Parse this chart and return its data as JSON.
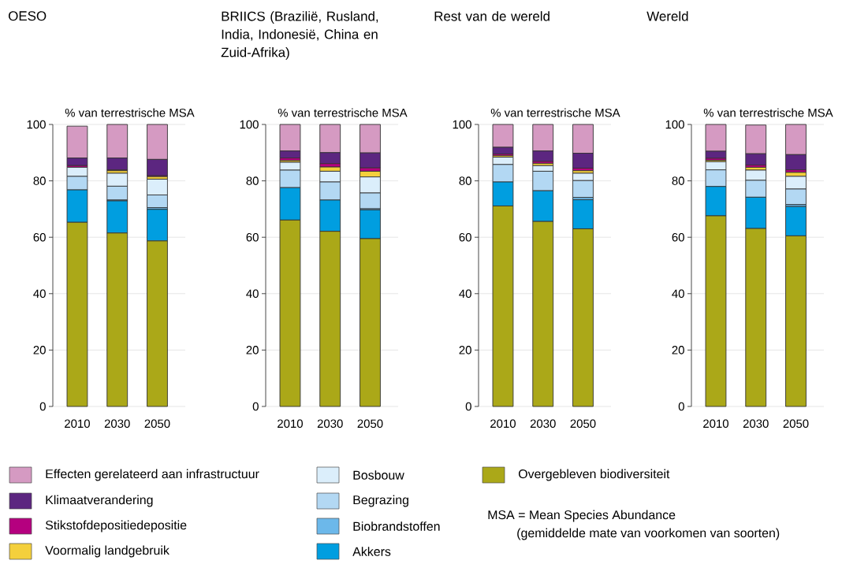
{
  "chart_data": [
    {
      "type": "bar",
      "stacked": true,
      "title": "OESO",
      "ylabel": "% van terrestrische MSA",
      "categories": [
        "2010",
        "2030",
        "2050"
      ],
      "ylim": [
        0,
        100
      ],
      "yticks": [
        0,
        20,
        40,
        60,
        80,
        100
      ],
      "grid": "y",
      "legend": "bottom",
      "annotations": [
        "MSA = Mean Species Abundance",
        "(gemiddelde mate van voorkomen van soorten)"
      ],
      "series": [
        {
          "name": "Overgebleven biodiversiteit",
          "color": "#aba818",
          "values": [
            65.3,
            61.5,
            58.7
          ]
        },
        {
          "name": "Akkers",
          "color": "#009ee0",
          "values": [
            11.5,
            11.4,
            11.2
          ]
        },
        {
          "name": "Biobrandstoffen",
          "color": "#6cb8ea",
          "values": [
            null,
            0.3,
            0.6
          ]
        },
        {
          "name": "Begrazing",
          "color": "#b3d8f3",
          "values": [
            4.8,
            4.9,
            4.5
          ]
        },
        {
          "name": "Bosbouw",
          "color": "#dbeefb",
          "values": [
            3.2,
            4.6,
            5.6
          ]
        },
        {
          "name": "Voormalig landgebruik",
          "color": "#f4d03c",
          "values": [
            null,
            0.9,
            0.9
          ]
        },
        {
          "name": "Stikstofdepositiedepositie",
          "color": "#b5007f",
          "values": [
            0.6,
            0.3,
            0.3
          ]
        },
        {
          "name": "Klimaatverandering",
          "color": "#5c2680",
          "values": [
            2.7,
            4.2,
            5.8
          ]
        },
        {
          "name": "Effecten gerelateerd aan infrastructuur",
          "color": "#d59ac2",
          "values": [
            11.3,
            11.9,
            12.4
          ]
        }
      ]
    },
    {
      "type": "bar",
      "stacked": true,
      "title": "BRIICS (Brazilië, Rusland, India, Indonesië, China en Zuid-Afrika)",
      "ylabel": "% van terrestrische MSA",
      "categories": [
        "2010",
        "2030",
        "2050"
      ],
      "ylim": [
        0,
        100
      ],
      "yticks": [
        0,
        20,
        40,
        60,
        80,
        100
      ],
      "grid": "y",
      "series": [
        {
          "color": "#aba818",
          "values": [
            66.1,
            62.1,
            59.5
          ]
        },
        {
          "color": "#009ee0",
          "values": [
            11.5,
            11.1,
            10.2
          ]
        },
        {
          "color": "#6cb8ea",
          "values": [
            0,
            0,
            0.4
          ]
        },
        {
          "color": "#b3d8f3",
          "values": [
            6.2,
            6.4,
            5.6
          ]
        },
        {
          "color": "#dbeefb",
          "values": [
            2.8,
            3.8,
            5.7
          ]
        },
        {
          "color": "#f4d03c",
          "values": [
            0.6,
            1.5,
            2.0
          ]
        },
        {
          "color": "#b5007f",
          "values": [
            0.9,
            1.2,
            1.2
          ]
        },
        {
          "color": "#5c2680",
          "values": [
            2.5,
            3.9,
            5.3
          ]
        },
        {
          "color": "#d59ac2",
          "values": [
            9.4,
            10.0,
            10.1
          ]
        }
      ]
    },
    {
      "type": "bar",
      "stacked": true,
      "title": "Rest van de wereld",
      "ylabel": "% van terrestrische MSA",
      "categories": [
        "2010",
        "2030",
        "2050"
      ],
      "ylim": [
        0,
        100
      ],
      "yticks": [
        0,
        20,
        40,
        60,
        80,
        100
      ],
      "grid": "y",
      "series": [
        {
          "color": "#aba818",
          "values": [
            71.1,
            65.6,
            63.0
          ]
        },
        {
          "color": "#009ee0",
          "values": [
            8.5,
            10.9,
            10.3
          ]
        },
        {
          "color": "#6cb8ea",
          "values": [
            0,
            0,
            0.8
          ]
        },
        {
          "color": "#b3d8f3",
          "values": [
            6.2,
            6.9,
            6.0
          ]
        },
        {
          "color": "#dbeefb",
          "values": [
            2.6,
            2.0,
            2.6
          ]
        },
        {
          "color": "#f4d03c",
          "values": [
            0.5,
            0.8,
            0.9
          ]
        },
        {
          "color": "#b5007f",
          "values": [
            0.6,
            0.7,
            0.9
          ]
        },
        {
          "color": "#5c2680",
          "values": [
            2.4,
            3.7,
            5.3
          ]
        },
        {
          "color": "#d59ac2",
          "values": [
            8.1,
            9.4,
            10.2
          ]
        }
      ]
    },
    {
      "type": "bar",
      "stacked": true,
      "title": "Wereld",
      "ylabel": "% van terrestrische MSA",
      "categories": [
        "2010",
        "2030",
        "2050"
      ],
      "ylim": [
        0,
        100
      ],
      "yticks": [
        0,
        20,
        40,
        60,
        80,
        100
      ],
      "grid": "y",
      "series": [
        {
          "color": "#aba818",
          "values": [
            67.6,
            63.1,
            60.5
          ]
        },
        {
          "color": "#009ee0",
          "values": [
            10.4,
            11.1,
            10.4
          ]
        },
        {
          "color": "#6cb8ea",
          "values": [
            0,
            null,
            0.7
          ]
        },
        {
          "color": "#b3d8f3",
          "values": [
            5.9,
            6.0,
            5.5
          ]
        },
        {
          "color": "#dbeefb",
          "values": [
            2.9,
            3.6,
            4.5
          ]
        },
        {
          "color": "#f4d03c",
          "values": [
            0.5,
            1.0,
            1.4
          ]
        },
        {
          "color": "#b5007f",
          "values": [
            0.7,
            0.8,
            0.9
          ]
        },
        {
          "color": "#5c2680",
          "values": [
            2.5,
            4.0,
            5.4
          ]
        },
        {
          "color": "#d59ac2",
          "values": [
            9.5,
            10.2,
            10.7
          ]
        }
      ]
    }
  ]
}
